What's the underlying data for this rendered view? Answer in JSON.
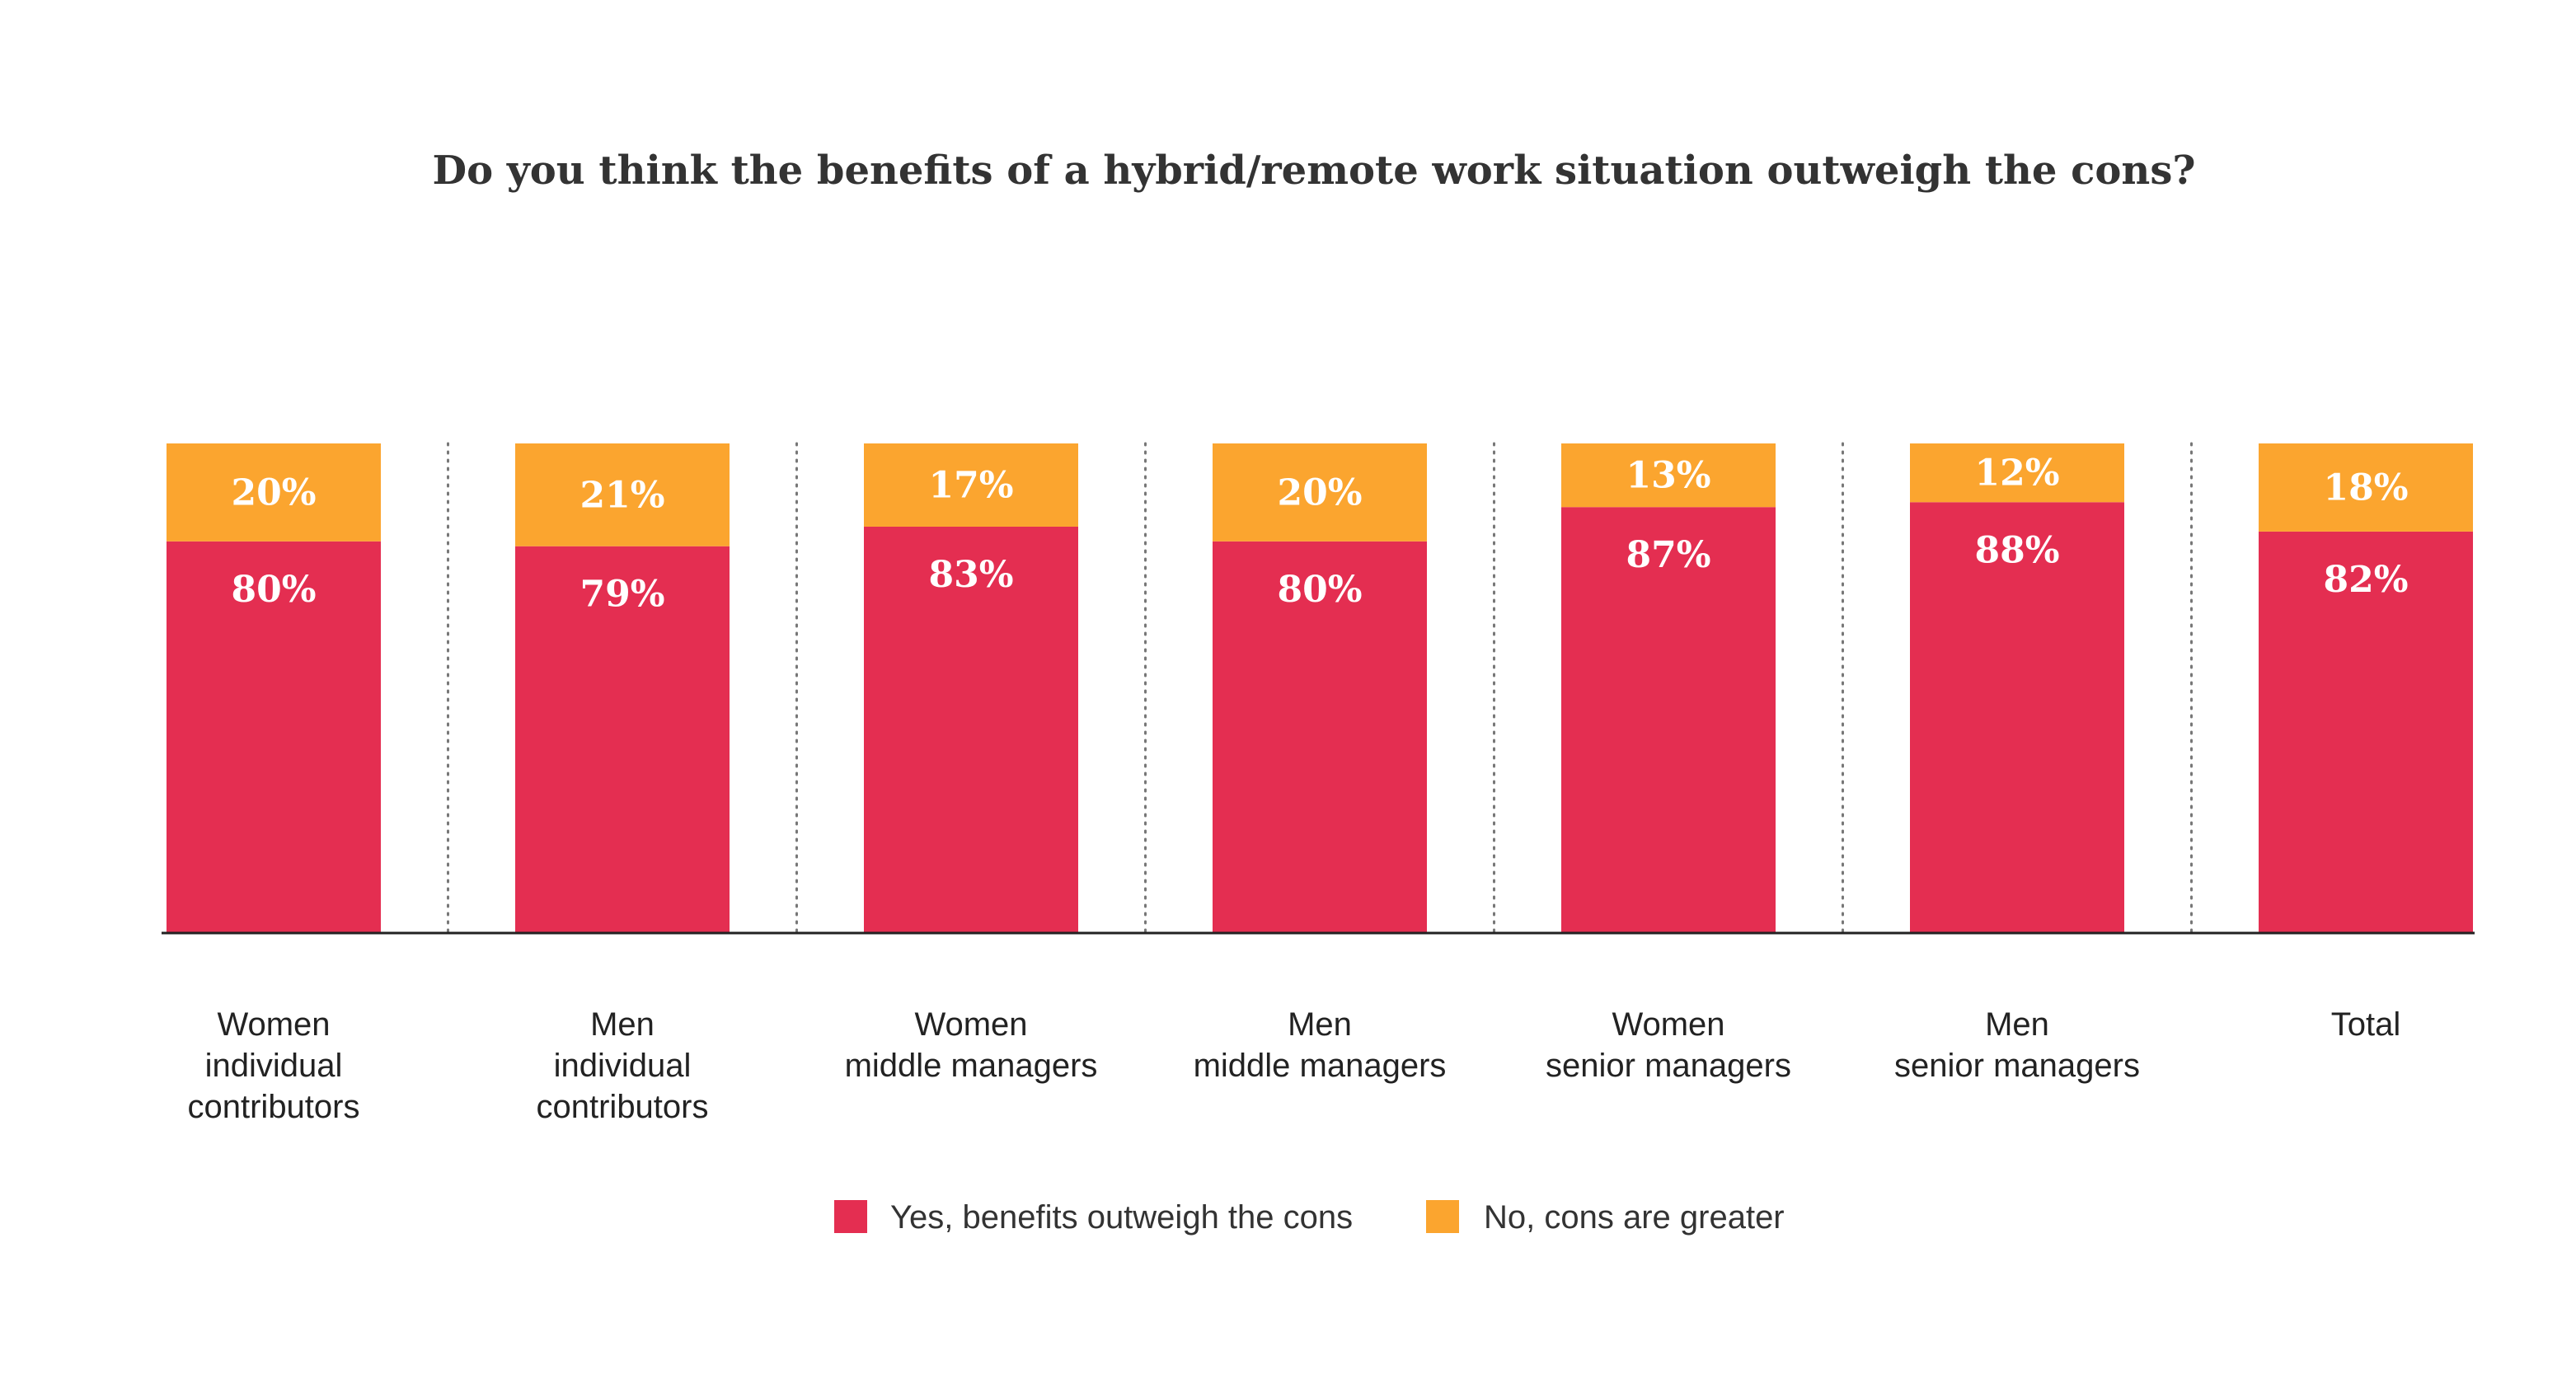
{
  "chart_data": {
    "type": "bar",
    "stacked": true,
    "title": "Do you think the benefits of a hybrid/remote work situation outweigh the cons?",
    "categories": [
      "Women individual contributors",
      "Men individual contributors",
      "Women middle managers",
      "Men middle managers",
      "Women senior managers",
      "Men senior managers",
      "Total"
    ],
    "category_lines": [
      [
        "Women",
        "individual",
        "contributors"
      ],
      [
        "Men",
        "individual",
        "contributors"
      ],
      [
        "Women",
        "middle managers"
      ],
      [
        "Men",
        "middle managers"
      ],
      [
        "Women",
        "senior managers"
      ],
      [
        "Men",
        "senior managers"
      ],
      [
        "Total"
      ]
    ],
    "series": [
      {
        "name": "Yes, benefits outweigh the cons",
        "color": "#E42E51",
        "values": [
          80,
          79,
          83,
          80,
          87,
          88,
          82
        ],
        "labels": [
          "80%",
          "79%",
          "83%",
          "80%",
          "87%",
          "88%",
          "82%"
        ]
      },
      {
        "name": "No, cons are greater",
        "color": "#FBA52F",
        "values": [
          20,
          21,
          17,
          20,
          13,
          12,
          18
        ],
        "labels": [
          "20%",
          "21%",
          "17%",
          "20%",
          "13%",
          "12%",
          "18%"
        ]
      }
    ],
    "ylim": [
      0,
      100
    ],
    "xlabel": "",
    "ylabel": "",
    "grid": false,
    "separators": "dotted",
    "legend_position": "bottom-center"
  }
}
